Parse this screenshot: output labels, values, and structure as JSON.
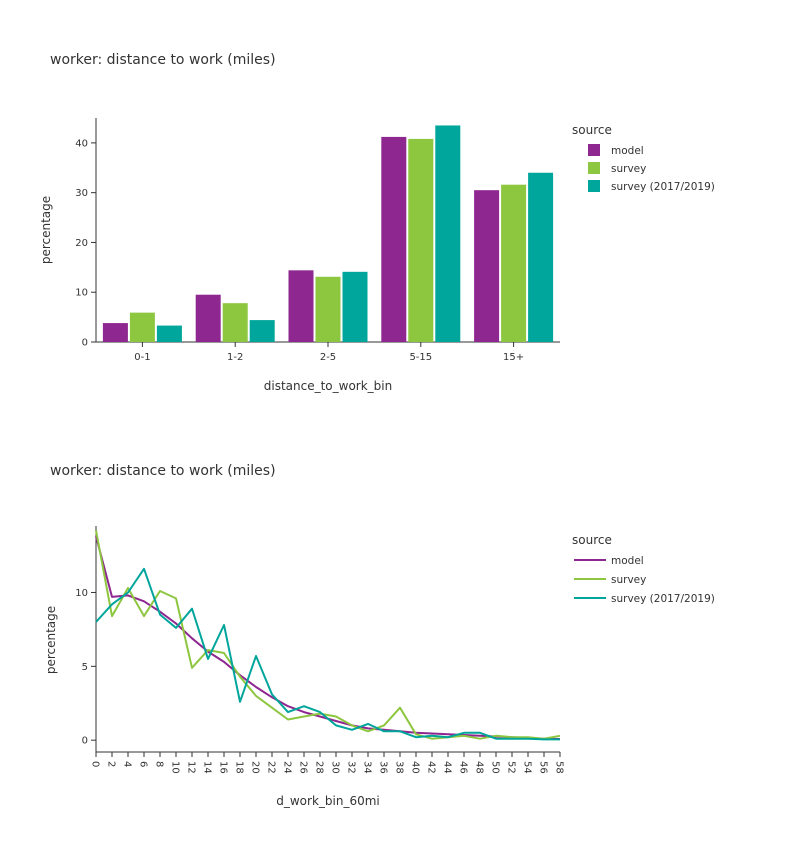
{
  "colors": {
    "model": "#8e278f",
    "survey": "#8dc63f",
    "survey_2017_2019": "#00a59b"
  },
  "chart_data": [
    {
      "type": "bar",
      "title": "worker: distance to work (miles)",
      "xlabel": "distance_to_work_bin",
      "ylabel": "percentage",
      "categories": [
        "0-1",
        "1-2",
        "2-5",
        "5-15",
        "15+"
      ],
      "ylim": [
        0,
        45
      ],
      "yticks": [
        0,
        10,
        20,
        30,
        40
      ],
      "legend_title": "source",
      "legend_position": "top-right",
      "grid": false,
      "series": [
        {
          "name": "model",
          "values": [
            3.8,
            9.5,
            14.4,
            41.2,
            30.5
          ]
        },
        {
          "name": "survey",
          "values": [
            5.9,
            7.8,
            13.1,
            40.8,
            31.6
          ]
        },
        {
          "name": "survey (2017/2019)",
          "values": [
            3.3,
            4.4,
            14.1,
            43.5,
            34.0
          ]
        }
      ]
    },
    {
      "type": "line",
      "title": "worker: distance to work (miles)",
      "xlabel": "d_work_bin_60mi",
      "ylabel": "percentage",
      "x": [
        0,
        2,
        4,
        6,
        8,
        10,
        12,
        14,
        16,
        18,
        20,
        22,
        24,
        26,
        28,
        30,
        32,
        34,
        36,
        38,
        40,
        42,
        44,
        46,
        48,
        50,
        52,
        54,
        56,
        58
      ],
      "xlim": [
        0,
        58
      ],
      "ylim": [
        -0.8,
        14.5
      ],
      "yticks": [
        0,
        5,
        10
      ],
      "legend_title": "source",
      "legend_position": "top-right",
      "grid": false,
      "series": [
        {
          "name": "model",
          "values": [
            13.8,
            9.7,
            9.8,
            9.4,
            8.7,
            7.9,
            6.9,
            6.0,
            5.3,
            4.4,
            3.6,
            2.9,
            2.3,
            1.9,
            1.6,
            1.3,
            1.0,
            0.8,
            0.7,
            0.6,
            0.5,
            0.45,
            0.4,
            0.35,
            0.3,
            0.25,
            0.2,
            0.15,
            0.1,
            0.08
          ]
        },
        {
          "name": "survey",
          "values": [
            14.2,
            8.4,
            10.3,
            8.4,
            10.1,
            9.6,
            4.9,
            6.1,
            5.9,
            4.3,
            3.0,
            2.2,
            1.4,
            1.6,
            1.8,
            1.6,
            1.0,
            0.6,
            1.0,
            2.2,
            0.4,
            0.1,
            0.2,
            0.3,
            0.1,
            0.3,
            0.2,
            0.2,
            0.1,
            0.3
          ]
        },
        {
          "name": "survey (2017/2019)",
          "values": [
            8.0,
            9.2,
            10.0,
            11.6,
            8.5,
            7.6,
            8.9,
            5.5,
            7.8,
            2.6,
            5.7,
            3.1,
            1.9,
            2.3,
            1.9,
            1.0,
            0.7,
            1.1,
            0.6,
            0.6,
            0.2,
            0.3,
            0.2,
            0.5,
            0.5,
            0.1,
            0.1,
            0.1,
            0.05,
            0.05
          ]
        }
      ]
    }
  ]
}
